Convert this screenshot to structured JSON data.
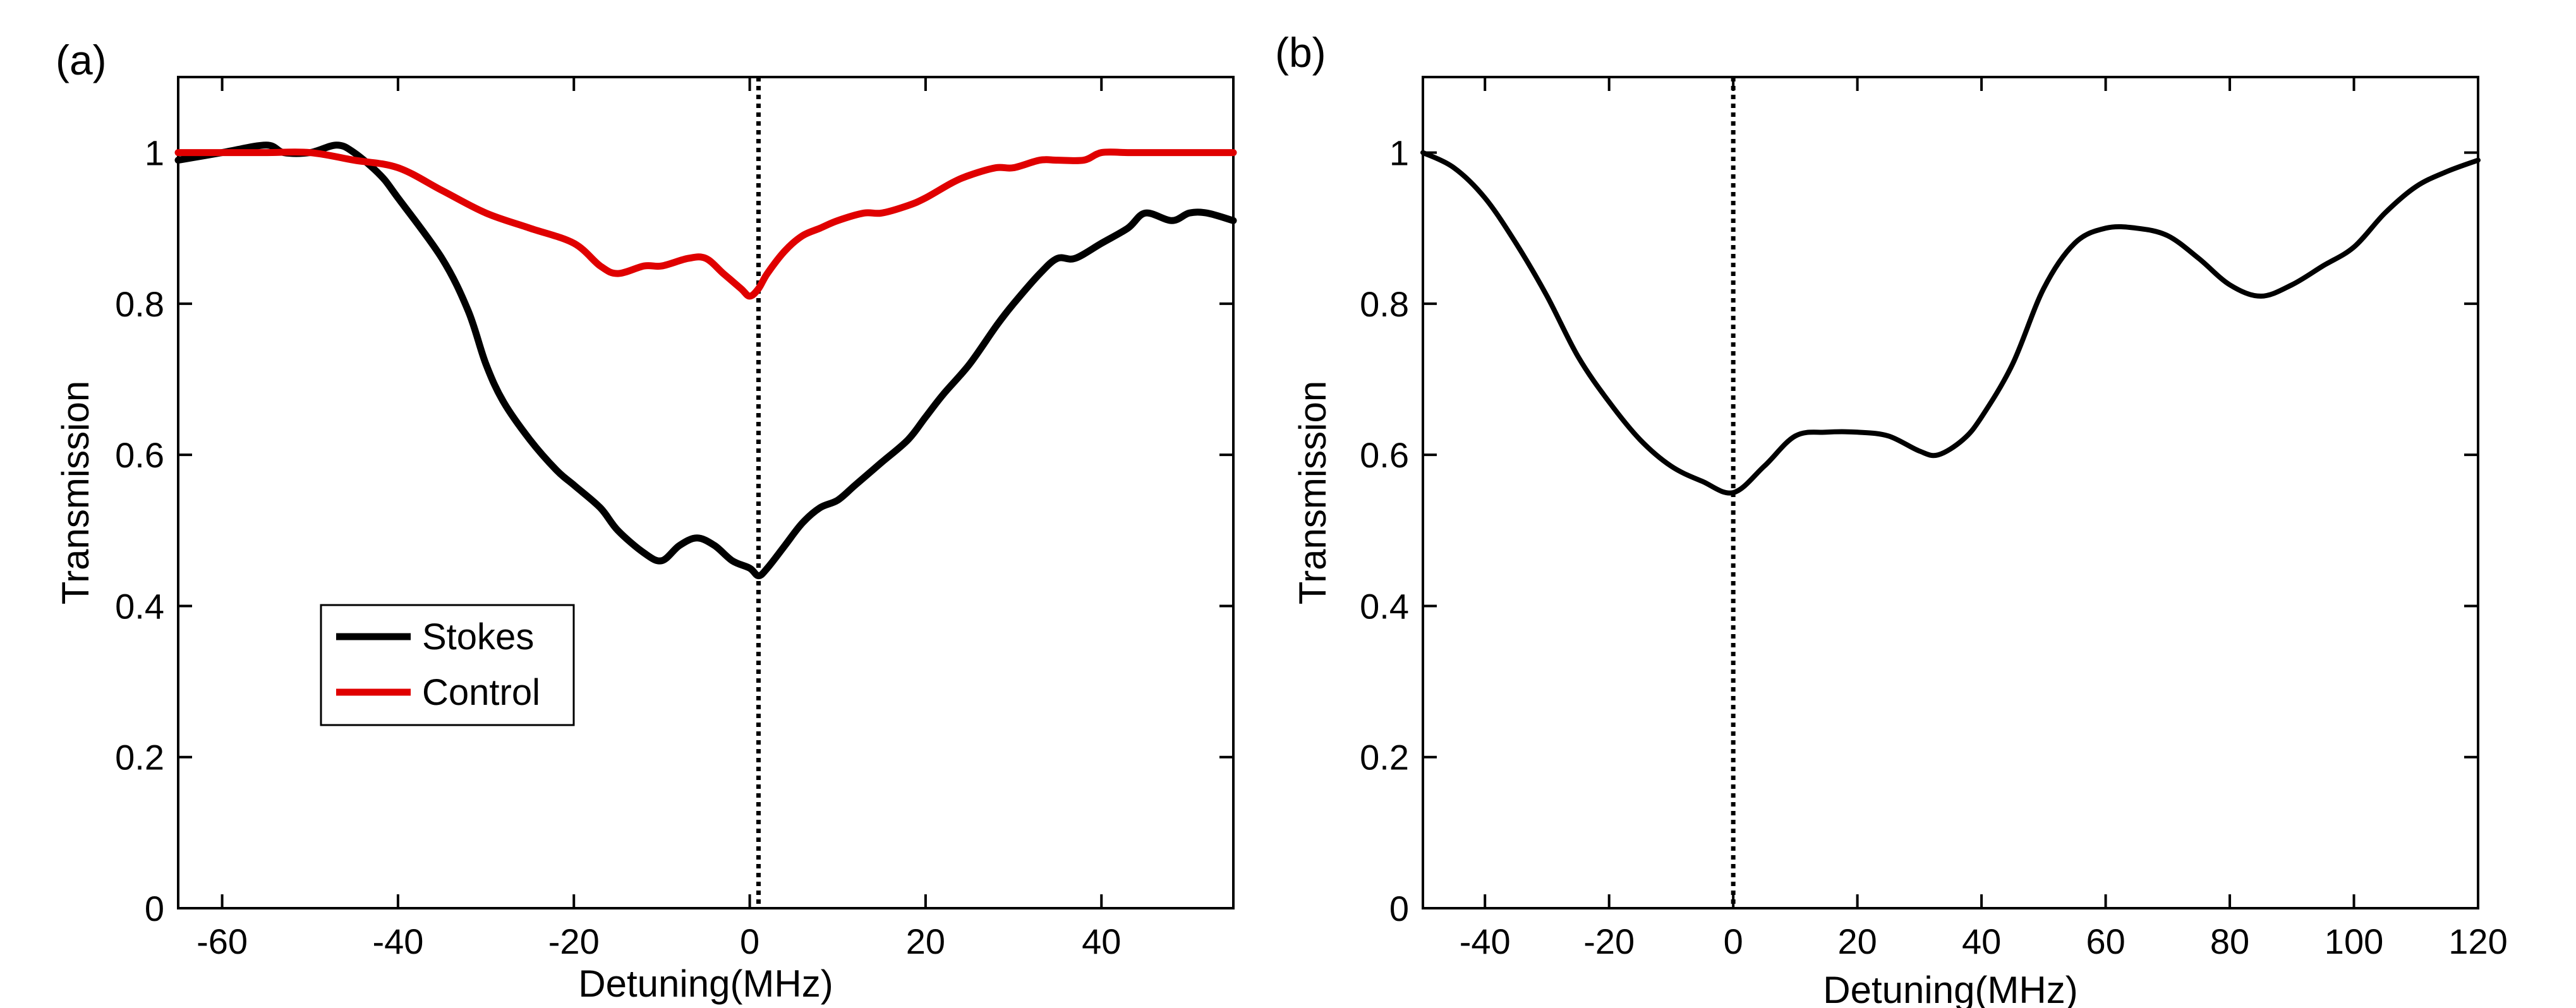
{
  "chart_data": [
    {
      "type": "line",
      "panel_label": "(a)",
      "title": "",
      "xlabel": "Detuning(MHz)",
      "ylabel": "Transmission",
      "xlim": [
        -65,
        55
      ],
      "ylim": [
        0,
        1.1
      ],
      "xticks": [
        -60,
        -40,
        -20,
        0,
        20,
        40
      ],
      "xtick_labels": [
        "-60",
        "-40",
        "-20",
        "0",
        "20",
        "40"
      ],
      "yticks": [
        0,
        0.2,
        0.4,
        0.6,
        0.8,
        1
      ],
      "ytick_labels": [
        "0",
        "0.2",
        "0.4",
        "0.6",
        "0.8",
        "1"
      ],
      "grid": false,
      "legend": {
        "position": "lower-left",
        "entries": [
          "Stokes",
          "Control"
        ]
      },
      "vline": {
        "x": 1,
        "style": "dotted"
      },
      "series": [
        {
          "name": "Stokes",
          "color": "#000000",
          "x": [
            -65,
            -60,
            -55,
            -53,
            -50,
            -47,
            -45,
            -42,
            -40,
            -35,
            -32,
            -30,
            -28,
            -25,
            -22,
            -20,
            -17,
            -15,
            -12,
            -10,
            -8,
            -6,
            -4,
            -2,
            0,
            1,
            2,
            4,
            6,
            8,
            10,
            12,
            15,
            18,
            20,
            22,
            25,
            28,
            30,
            33,
            35,
            37,
            40,
            43,
            45,
            48,
            50,
            52,
            55
          ],
          "values": [
            0.99,
            1.0,
            1.01,
            1.0,
            1.0,
            1.01,
            1.0,
            0.97,
            0.94,
            0.86,
            0.79,
            0.72,
            0.67,
            0.62,
            0.58,
            0.56,
            0.53,
            0.5,
            0.47,
            0.46,
            0.48,
            0.49,
            0.48,
            0.46,
            0.45,
            0.44,
            0.45,
            0.48,
            0.51,
            0.53,
            0.54,
            0.56,
            0.59,
            0.62,
            0.65,
            0.68,
            0.72,
            0.77,
            0.8,
            0.84,
            0.86,
            0.86,
            0.88,
            0.9,
            0.92,
            0.91,
            0.92,
            0.92,
            0.91
          ]
        },
        {
          "name": "Control",
          "color": "#e00000",
          "x": [
            -65,
            -60,
            -55,
            -50,
            -45,
            -40,
            -35,
            -30,
            -25,
            -20,
            -17,
            -15,
            -12,
            -10,
            -7,
            -5,
            -3,
            -1,
            0,
            1,
            2,
            4,
            6,
            8,
            10,
            13,
            15,
            18,
            20,
            23,
            25,
            28,
            30,
            33,
            35,
            38,
            40,
            43,
            45,
            48,
            50,
            55
          ],
          "values": [
            1.0,
            1.0,
            1.0,
            1.0,
            0.99,
            0.98,
            0.95,
            0.92,
            0.9,
            0.88,
            0.85,
            0.84,
            0.85,
            0.85,
            0.86,
            0.86,
            0.84,
            0.82,
            0.81,
            0.82,
            0.84,
            0.87,
            0.89,
            0.9,
            0.91,
            0.92,
            0.92,
            0.93,
            0.94,
            0.96,
            0.97,
            0.98,
            0.98,
            0.99,
            0.99,
            0.99,
            1.0,
            1.0,
            1.0,
            1.0,
            1.0,
            1.0
          ]
        }
      ]
    },
    {
      "type": "line",
      "panel_label": "(b)",
      "title": "",
      "xlabel": "Detuning(MHz)",
      "ylabel": "Transmission",
      "xlim": [
        -50,
        120
      ],
      "ylim": [
        0,
        1.1
      ],
      "xticks": [
        -40,
        -20,
        0,
        20,
        40,
        60,
        80,
        100,
        120
      ],
      "xtick_labels": [
        "-40",
        "-20",
        "0",
        "20",
        "40",
        "60",
        "80",
        "100",
        "120"
      ],
      "yticks": [
        0,
        0.2,
        0.4,
        0.6,
        0.8,
        1
      ],
      "ytick_labels": [
        "0",
        "0.2",
        "0.4",
        "0.6",
        "0.8",
        "1"
      ],
      "grid": false,
      "legend": null,
      "vline": {
        "x": 0,
        "style": "dotted"
      },
      "series": [
        {
          "name": "Transmission",
          "color": "#000000",
          "x": [
            -50,
            -45,
            -40,
            -35,
            -30,
            -25,
            -20,
            -15,
            -10,
            -5,
            0,
            5,
            10,
            15,
            20,
            25,
            30,
            33,
            37,
            40,
            45,
            50,
            55,
            60,
            65,
            70,
            75,
            80,
            85,
            90,
            95,
            100,
            105,
            110,
            115,
            120
          ],
          "values": [
            1.0,
            0.98,
            0.94,
            0.88,
            0.81,
            0.73,
            0.67,
            0.62,
            0.585,
            0.565,
            0.55,
            0.585,
            0.625,
            0.63,
            0.63,
            0.625,
            0.605,
            0.6,
            0.62,
            0.65,
            0.72,
            0.82,
            0.88,
            0.9,
            0.9,
            0.89,
            0.86,
            0.825,
            0.81,
            0.825,
            0.85,
            0.875,
            0.92,
            0.955,
            0.975,
            0.99
          ]
        }
      ]
    }
  ]
}
